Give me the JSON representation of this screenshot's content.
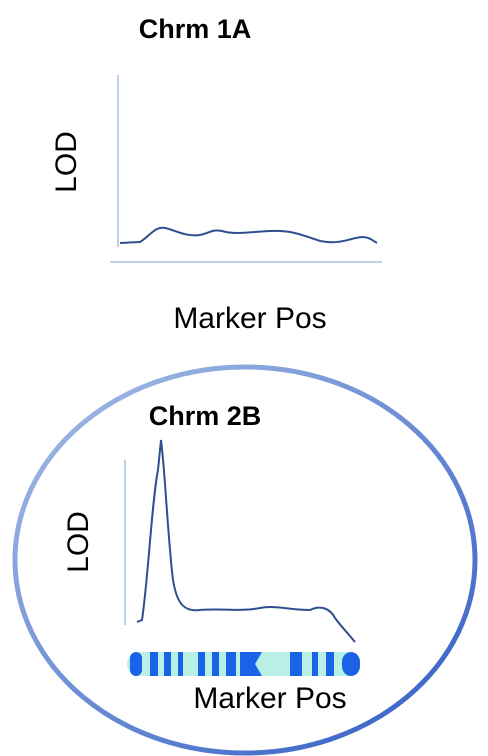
{
  "panels": [
    {
      "title": "Chrm 1A",
      "y_label": "LOD",
      "x_label": "Marker Pos"
    },
    {
      "title": "Chrm 2B",
      "y_label": "LOD",
      "x_label": "Marker Pos"
    }
  ]
}
